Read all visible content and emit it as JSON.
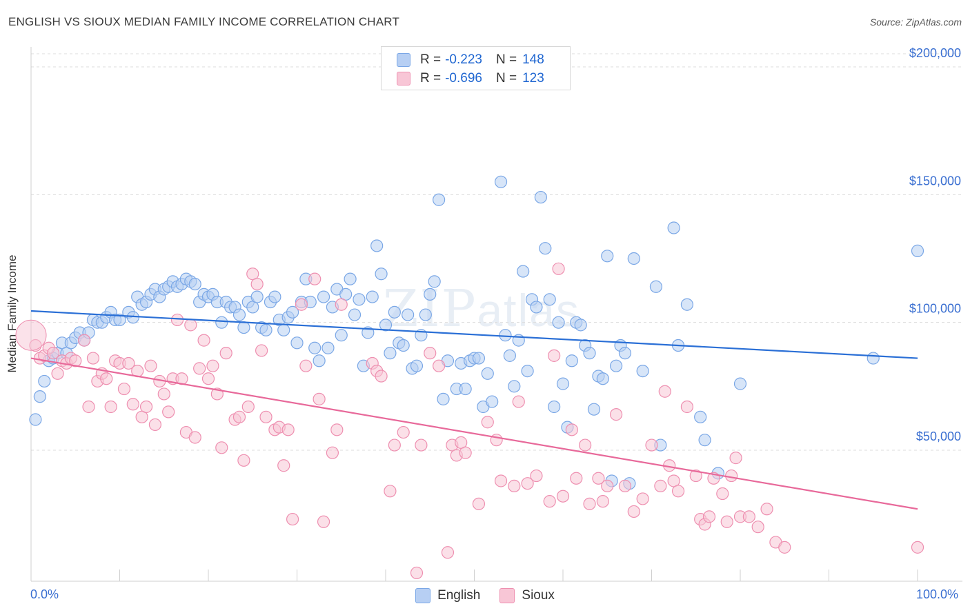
{
  "title": "ENGLISH VS SIOUX MEDIAN FAMILY INCOME CORRELATION CHART",
  "source": "Source: ZipAtlas.com",
  "watermark": {
    "zip": "ZIP",
    "atlas": "atlas"
  },
  "legend": {
    "rows": [
      {
        "r_label": "R =",
        "r_value": "-0.223",
        "n_label": "N =",
        "n_value": "148",
        "color": "#7aa7e6",
        "fill": "#b7cff3"
      },
      {
        "r_label": "R =",
        "r_value": "-0.696",
        "n_label": "N =",
        "n_value": "123",
        "color": "#ee8fb0",
        "fill": "#f8c6d6"
      }
    ]
  },
  "bottom_legend": [
    {
      "label": "English",
      "color": "#7aa7e6",
      "fill": "#b7cff3"
    },
    {
      "label": "Sioux",
      "color": "#ee8fb0",
      "fill": "#f8c6d6"
    }
  ],
  "chart_data": {
    "type": "scatter",
    "title": "ENGLISH VS SIOUX MEDIAN FAMILY INCOME CORRELATION CHART",
    "xlabel": "",
    "ylabel": "Median Family Income",
    "xlim": [
      0,
      100
    ],
    "ylim": [
      5000,
      210000
    ],
    "x_tick_labels": [
      "0.0%",
      "100.0%"
    ],
    "y_ticks": [
      50000,
      100000,
      150000,
      200000
    ],
    "y_tick_labels": [
      "$50,000",
      "$100,000",
      "$150,000",
      "$200,000"
    ],
    "grid": "horizontal-dashed",
    "legend_position": "top-center",
    "series": [
      {
        "name": "English",
        "color": "#7aa7e6",
        "fill": "#b7cff3",
        "trend": {
          "x": [
            0,
            100
          ],
          "y": [
            104500,
            86000
          ]
        },
        "points": [
          [
            0.5,
            62000
          ],
          [
            1.0,
            71000
          ],
          [
            1.5,
            77000
          ],
          [
            2.0,
            85000
          ],
          [
            2.5,
            86000
          ],
          [
            3.0,
            88000
          ],
          [
            3.5,
            92000
          ],
          [
            4.0,
            88000
          ],
          [
            4.5,
            92000
          ],
          [
            5.0,
            94000
          ],
          [
            5.5,
            96000
          ],
          [
            6.0,
            93000
          ],
          [
            6.5,
            96000
          ],
          [
            7.0,
            101000
          ],
          [
            7.5,
            100000
          ],
          [
            8.0,
            100000
          ],
          [
            8.5,
            102000
          ],
          [
            9.0,
            104000
          ],
          [
            9.5,
            101000
          ],
          [
            10.0,
            101000
          ],
          [
            11.0,
            104000
          ],
          [
            11.5,
            102000
          ],
          [
            12.0,
            110000
          ],
          [
            12.5,
            107000
          ],
          [
            13.0,
            108000
          ],
          [
            13.5,
            111000
          ],
          [
            14.0,
            113000
          ],
          [
            14.5,
            110000
          ],
          [
            15.0,
            113000
          ],
          [
            15.5,
            114000
          ],
          [
            16.0,
            116000
          ],
          [
            16.5,
            114000
          ],
          [
            17.0,
            115000
          ],
          [
            17.5,
            117000
          ],
          [
            18.0,
            116000
          ],
          [
            18.5,
            115000
          ],
          [
            19.0,
            108000
          ],
          [
            19.5,
            111000
          ],
          [
            20.0,
            110000
          ],
          [
            20.5,
            111000
          ],
          [
            21.0,
            108000
          ],
          [
            21.5,
            100000
          ],
          [
            22.0,
            108000
          ],
          [
            22.5,
            106000
          ],
          [
            23.0,
            106000
          ],
          [
            23.5,
            103000
          ],
          [
            24.0,
            98000
          ],
          [
            24.5,
            108000
          ],
          [
            25.0,
            106000
          ],
          [
            25.5,
            110000
          ],
          [
            26.0,
            98000
          ],
          [
            26.5,
            97000
          ],
          [
            27.0,
            108000
          ],
          [
            27.5,
            110000
          ],
          [
            28.0,
            101000
          ],
          [
            28.5,
            97000
          ],
          [
            29.0,
            102000
          ],
          [
            29.5,
            104000
          ],
          [
            30.0,
            92000
          ],
          [
            30.5,
            108000
          ],
          [
            31.0,
            117000
          ],
          [
            31.5,
            108000
          ],
          [
            32.0,
            90000
          ],
          [
            32.5,
            85000
          ],
          [
            33.0,
            110000
          ],
          [
            33.5,
            90000
          ],
          [
            34.0,
            106000
          ],
          [
            34.5,
            113000
          ],
          [
            35.0,
            95000
          ],
          [
            35.5,
            111000
          ],
          [
            36.0,
            117000
          ],
          [
            36.5,
            103000
          ],
          [
            37.0,
            109000
          ],
          [
            37.5,
            83000
          ],
          [
            38.0,
            96000
          ],
          [
            38.5,
            110000
          ],
          [
            39.0,
            130000
          ],
          [
            39.5,
            119000
          ],
          [
            40.0,
            99000
          ],
          [
            40.5,
            88000
          ],
          [
            41.0,
            104000
          ],
          [
            41.5,
            92000
          ],
          [
            42.0,
            91000
          ],
          [
            42.5,
            103000
          ],
          [
            43.0,
            82000
          ],
          [
            43.5,
            83000
          ],
          [
            44.0,
            95000
          ],
          [
            44.5,
            103000
          ],
          [
            45.0,
            111000
          ],
          [
            45.5,
            116000
          ],
          [
            46.0,
            148000
          ],
          [
            46.5,
            70000
          ],
          [
            47.0,
            85000
          ],
          [
            48.0,
            74000
          ],
          [
            48.5,
            84000
          ],
          [
            49.0,
            74000
          ],
          [
            49.5,
            85000
          ],
          [
            50.0,
            86000
          ],
          [
            50.5,
            86000
          ],
          [
            51.0,
            67000
          ],
          [
            51.5,
            80000
          ],
          [
            52.0,
            69000
          ],
          [
            53.0,
            155000
          ],
          [
            53.5,
            95000
          ],
          [
            54.0,
            87000
          ],
          [
            54.5,
            75000
          ],
          [
            55.0,
            93000
          ],
          [
            55.5,
            120000
          ],
          [
            56.0,
            81000
          ],
          [
            56.5,
            109000
          ],
          [
            57.0,
            106000
          ],
          [
            57.5,
            149000
          ],
          [
            58.0,
            129000
          ],
          [
            58.5,
            109000
          ],
          [
            59.0,
            67000
          ],
          [
            59.5,
            100000
          ],
          [
            60.0,
            76000
          ],
          [
            60.5,
            59000
          ],
          [
            61.0,
            85000
          ],
          [
            61.5,
            100000
          ],
          [
            62.0,
            99000
          ],
          [
            62.5,
            91000
          ],
          [
            63.0,
            88000
          ],
          [
            63.5,
            66000
          ],
          [
            64.0,
            79000
          ],
          [
            64.5,
            78000
          ],
          [
            65.0,
            126000
          ],
          [
            65.5,
            38000
          ],
          [
            66.0,
            83000
          ],
          [
            66.5,
            91000
          ],
          [
            67.0,
            88000
          ],
          [
            67.5,
            37000
          ],
          [
            68.0,
            125000
          ],
          [
            69.0,
            81000
          ],
          [
            70.5,
            114000
          ],
          [
            71.0,
            52000
          ],
          [
            72.5,
            137000
          ],
          [
            73.0,
            91000
          ],
          [
            74.0,
            107000
          ],
          [
            75.5,
            63000
          ],
          [
            76.0,
            54000
          ],
          [
            77.5,
            41000
          ],
          [
            80.0,
            76000
          ],
          [
            95.0,
            86000
          ],
          [
            100.0,
            128000
          ]
        ]
      },
      {
        "name": "Sioux",
        "color": "#ee8fb0",
        "fill": "#f8c6d6",
        "trend": {
          "x": [
            0,
            100
          ],
          "y": [
            86000,
            27000
          ]
        },
        "points": [
          [
            0.5,
            91000
          ],
          [
            1.0,
            86000
          ],
          [
            1.5,
            87000
          ],
          [
            2.0,
            90000
          ],
          [
            2.5,
            88000
          ],
          [
            3.0,
            80000
          ],
          [
            3.5,
            85000
          ],
          [
            4.0,
            84000
          ],
          [
            4.5,
            86000
          ],
          [
            5.0,
            85000
          ],
          [
            6.0,
            93000
          ],
          [
            6.5,
            67000
          ],
          [
            7.0,
            86000
          ],
          [
            7.5,
            77000
          ],
          [
            8.0,
            80000
          ],
          [
            8.5,
            78000
          ],
          [
            9.0,
            67000
          ],
          [
            9.5,
            85000
          ],
          [
            10.0,
            84000
          ],
          [
            10.5,
            74000
          ],
          [
            11.0,
            84000
          ],
          [
            11.5,
            68000
          ],
          [
            12.0,
            81000
          ],
          [
            12.5,
            63000
          ],
          [
            13.0,
            67000
          ],
          [
            13.5,
            83000
          ],
          [
            14.0,
            60000
          ],
          [
            14.5,
            77000
          ],
          [
            15.0,
            72000
          ],
          [
            15.5,
            65000
          ],
          [
            16.0,
            78000
          ],
          [
            16.5,
            101000
          ],
          [
            17.0,
            78000
          ],
          [
            17.5,
            57000
          ],
          [
            18.0,
            99000
          ],
          [
            18.5,
            55000
          ],
          [
            19.0,
            82000
          ],
          [
            19.5,
            93000
          ],
          [
            20.0,
            78000
          ],
          [
            20.5,
            83000
          ],
          [
            21.0,
            72000
          ],
          [
            21.5,
            51000
          ],
          [
            22.0,
            88000
          ],
          [
            23.0,
            62000
          ],
          [
            23.5,
            63000
          ],
          [
            24.0,
            46000
          ],
          [
            24.5,
            67000
          ],
          [
            25.0,
            119000
          ],
          [
            25.5,
            115000
          ],
          [
            26.0,
            89000
          ],
          [
            26.5,
            63000
          ],
          [
            27.5,
            58000
          ],
          [
            28.0,
            59000
          ],
          [
            28.5,
            44000
          ],
          [
            29.0,
            58000
          ],
          [
            29.5,
            23000
          ],
          [
            30.5,
            107000
          ],
          [
            31.0,
            83000
          ],
          [
            32.0,
            117000
          ],
          [
            32.5,
            70000
          ],
          [
            33.0,
            22000
          ],
          [
            34.0,
            49000
          ],
          [
            34.5,
            58000
          ],
          [
            35.0,
            107000
          ],
          [
            38.5,
            84000
          ],
          [
            39.0,
            81000
          ],
          [
            39.5,
            79000
          ],
          [
            40.5,
            34000
          ],
          [
            41.0,
            52000
          ],
          [
            42.0,
            57000
          ],
          [
            43.5,
            2000
          ],
          [
            44.0,
            52000
          ],
          [
            45.0,
            88000
          ],
          [
            46.0,
            83000
          ],
          [
            47.0,
            10000
          ],
          [
            47.5,
            52000
          ],
          [
            48.0,
            48000
          ],
          [
            48.5,
            53000
          ],
          [
            49.0,
            49000
          ],
          [
            50.5,
            29000
          ],
          [
            51.5,
            61000
          ],
          [
            52.5,
            54000
          ],
          [
            53.0,
            38000
          ],
          [
            54.5,
            36000
          ],
          [
            55.0,
            69000
          ],
          [
            56.0,
            37000
          ],
          [
            57.0,
            40000
          ],
          [
            58.5,
            30000
          ],
          [
            59.0,
            87000
          ],
          [
            59.5,
            121000
          ],
          [
            60.0,
            32000
          ],
          [
            61.0,
            58000
          ],
          [
            61.5,
            39000
          ],
          [
            62.5,
            52000
          ],
          [
            63.0,
            29000
          ],
          [
            64.0,
            39000
          ],
          [
            64.5,
            30000
          ],
          [
            65.0,
            36000
          ],
          [
            66.0,
            64000
          ],
          [
            67.0,
            36000
          ],
          [
            68.0,
            26000
          ],
          [
            69.0,
            31000
          ],
          [
            70.0,
            52000
          ],
          [
            71.0,
            36000
          ],
          [
            71.5,
            73000
          ],
          [
            72.0,
            44000
          ],
          [
            72.5,
            38000
          ],
          [
            73.0,
            34000
          ],
          [
            74.0,
            67000
          ],
          [
            75.0,
            40000
          ],
          [
            75.5,
            23000
          ],
          [
            76.0,
            21000
          ],
          [
            76.5,
            24000
          ],
          [
            77.0,
            39000
          ],
          [
            78.0,
            33000
          ],
          [
            78.5,
            22000
          ],
          [
            79.0,
            40000
          ],
          [
            79.5,
            47000
          ],
          [
            80.0,
            24000
          ],
          [
            81.0,
            24000
          ],
          [
            82.0,
            20000
          ],
          [
            83.0,
            27000
          ],
          [
            84.0,
            14000
          ],
          [
            85.0,
            12000
          ],
          [
            100.0,
            12000
          ]
        ]
      }
    ]
  }
}
